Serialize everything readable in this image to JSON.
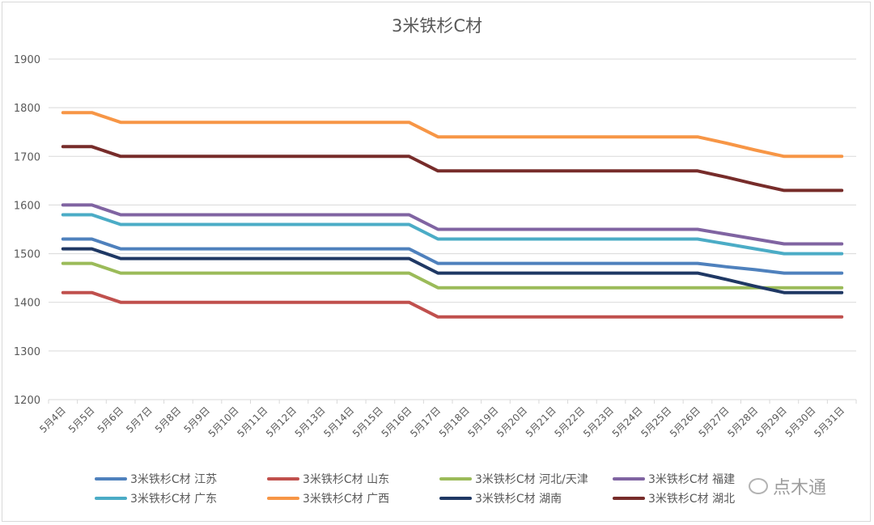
{
  "chart_data": {
    "type": "line",
    "title": "3米铁杉C材",
    "xlabel": "",
    "ylabel": "",
    "ylim": [
      1200,
      1900
    ],
    "yticks": [
      1200,
      1300,
      1400,
      1500,
      1600,
      1700,
      1800,
      1900
    ],
    "grid": true,
    "legend_position": "bottom",
    "categories": [
      "5月4日",
      "5月5日",
      "5月6日",
      "5月7日",
      "5月8日",
      "5月9日",
      "5月10日",
      "5月11日",
      "5月12日",
      "5月13日",
      "5月14日",
      "5月15日",
      "5月16日",
      "5月17日",
      "5月18日",
      "5月19日",
      "5月20日",
      "5月21日",
      "5月22日",
      "5月23日",
      "5月24日",
      "5月25日",
      "5月26日",
      "5月27日",
      "5月28日",
      "5月29日",
      "5月30日",
      "5月31日"
    ],
    "series": [
      {
        "name": "3米铁杉C材 江苏",
        "color": "#4F81BD",
        "values": [
          1530,
          1530,
          1510,
          1510,
          1510,
          1510,
          1510,
          1510,
          1510,
          1510,
          1510,
          1510,
          1510,
          1480,
          1480,
          1480,
          1480,
          1480,
          1480,
          1480,
          1480,
          1480,
          1480,
          1473,
          1467,
          1460,
          1460,
          1460
        ]
      },
      {
        "name": "3米铁杉C材 山东",
        "color": "#C0504D",
        "values": [
          1420,
          1420,
          1400,
          1400,
          1400,
          1400,
          1400,
          1400,
          1400,
          1400,
          1400,
          1400,
          1400,
          1370,
          1370,
          1370,
          1370,
          1370,
          1370,
          1370,
          1370,
          1370,
          1370,
          1370,
          1370,
          1370,
          1370,
          1370
        ]
      },
      {
        "name": "3米铁杉C材 河北/天津",
        "color": "#9BBB59",
        "values": [
          1480,
          1480,
          1460,
          1460,
          1460,
          1460,
          1460,
          1460,
          1460,
          1460,
          1460,
          1460,
          1460,
          1430,
          1430,
          1430,
          1430,
          1430,
          1430,
          1430,
          1430,
          1430,
          1430,
          1430,
          1430,
          1430,
          1430,
          1430
        ]
      },
      {
        "name": "3米铁杉C材 福建",
        "color": "#8064A2",
        "values": [
          1600,
          1600,
          1580,
          1580,
          1580,
          1580,
          1580,
          1580,
          1580,
          1580,
          1580,
          1580,
          1580,
          1550,
          1550,
          1550,
          1550,
          1550,
          1550,
          1550,
          1550,
          1550,
          1550,
          1540,
          1530,
          1520,
          1520,
          1520
        ]
      },
      {
        "name": "3米铁杉C材 广东",
        "color": "#4BACC6",
        "values": [
          1580,
          1580,
          1560,
          1560,
          1560,
          1560,
          1560,
          1560,
          1560,
          1560,
          1560,
          1560,
          1560,
          1530,
          1530,
          1530,
          1530,
          1530,
          1530,
          1530,
          1530,
          1530,
          1530,
          1520,
          1510,
          1500,
          1500,
          1500
        ]
      },
      {
        "name": "3米铁杉C材 广西",
        "color": "#F79646",
        "values": [
          1790,
          1790,
          1770,
          1770,
          1770,
          1770,
          1770,
          1770,
          1770,
          1770,
          1770,
          1770,
          1770,
          1740,
          1740,
          1740,
          1740,
          1740,
          1740,
          1740,
          1740,
          1740,
          1740,
          1727,
          1713,
          1700,
          1700,
          1700
        ]
      },
      {
        "name": "3米铁杉C材 湖南",
        "color": "#1F3864",
        "values": [
          1510,
          1510,
          1490,
          1490,
          1490,
          1490,
          1490,
          1490,
          1490,
          1490,
          1490,
          1490,
          1490,
          1460,
          1460,
          1460,
          1460,
          1460,
          1460,
          1460,
          1460,
          1460,
          1460,
          1447,
          1433,
          1420,
          1420,
          1420
        ]
      },
      {
        "name": "3米铁杉C材 湖北",
        "color": "#772C2A",
        "values": [
          1720,
          1720,
          1700,
          1700,
          1700,
          1700,
          1700,
          1700,
          1700,
          1700,
          1700,
          1700,
          1700,
          1670,
          1670,
          1670,
          1670,
          1670,
          1670,
          1670,
          1670,
          1670,
          1670,
          1657,
          1643,
          1630,
          1630,
          1630
        ]
      }
    ]
  },
  "legend": {
    "items": [
      {
        "label": "3米铁杉C材 江苏",
        "color": "#4F81BD"
      },
      {
        "label": "3米铁杉C材 山东",
        "color": "#C0504D"
      },
      {
        "label": "3米铁杉C材 河北/天津",
        "color": "#9BBB59"
      },
      {
        "label": "3米铁杉C材 福建",
        "color": "#8064A2"
      },
      {
        "label": "3米铁杉C材 广东",
        "color": "#4BACC6"
      },
      {
        "label": "3米铁杉C材 广西",
        "color": "#F79646"
      },
      {
        "label": "3米铁杉C材 湖南",
        "color": "#1F3864"
      },
      {
        "label": "3米铁杉C材 湖北",
        "color": "#772C2A"
      }
    ]
  },
  "watermark": {
    "text": "点木通"
  }
}
